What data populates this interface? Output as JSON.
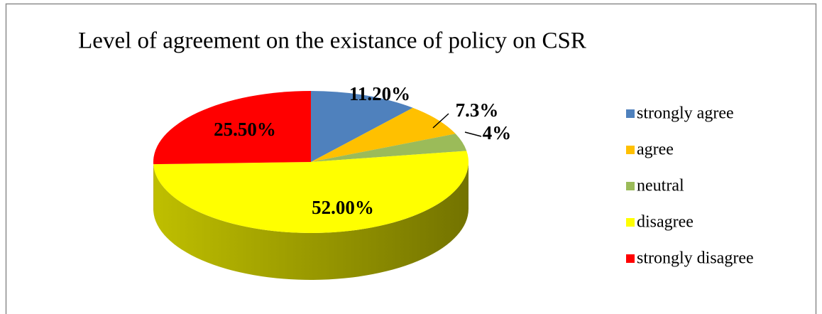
{
  "chart_data": {
    "type": "pie",
    "title": "Level of agreement on the existance of policy on CSR",
    "categories": [
      "strongly agree",
      "agree",
      "neutral",
      "disagree",
      "strongly disagree"
    ],
    "values": [
      11.2,
      7.3,
      4,
      52,
      25.5
    ],
    "value_labels": [
      "11.20%",
      "7.3%",
      "4%",
      "52.00%",
      "25.50%"
    ],
    "colors": [
      "#4f81bd",
      "#ffc000",
      "#9bbb59",
      "#ffff00",
      "#ff0000"
    ],
    "legend": "right"
  }
}
